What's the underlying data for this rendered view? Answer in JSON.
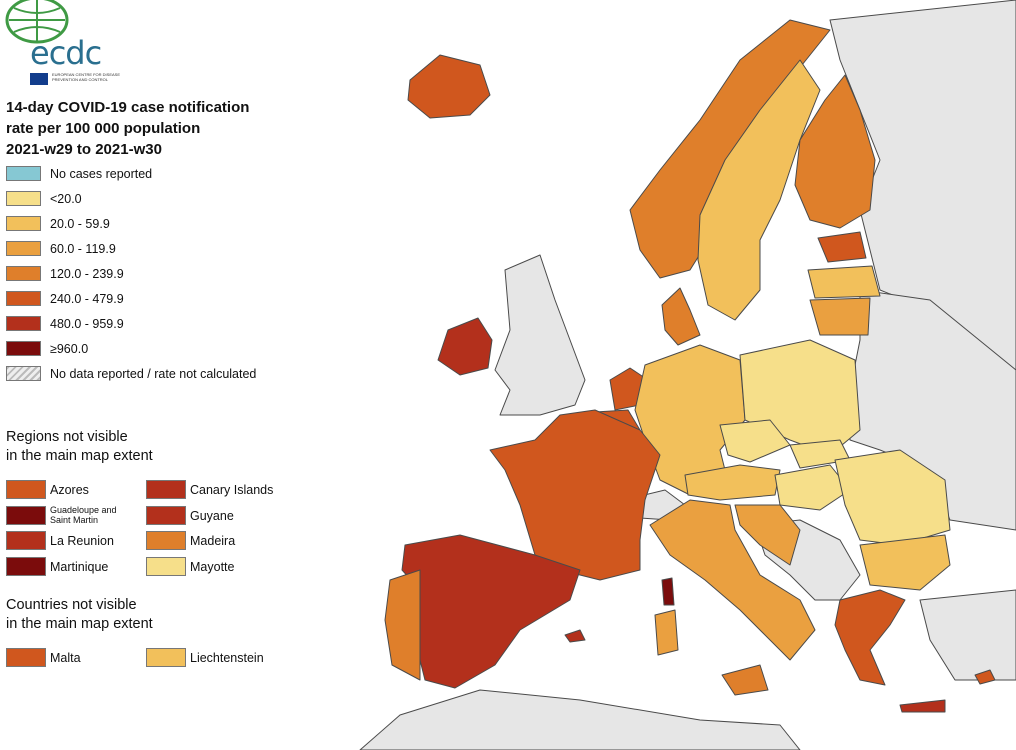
{
  "title_lines": [
    "14-day COVID-19 case notification",
    "rate per 100 000 population",
    "2021-w29 to 2021-w30"
  ],
  "logo": {
    "name": "ecdc",
    "sub": "EUROPEAN CENTRE FOR DISEASE PREVENTION AND CONTROL"
  },
  "legend": [
    {
      "label": "No cases reported",
      "color": "#86c8d3"
    },
    {
      "label": "<20.0",
      "color": "#f6df8a"
    },
    {
      "label": "20.0 - 59.9",
      "color": "#f2c05b"
    },
    {
      "label": "60.0 - 119.9",
      "color": "#eaa040"
    },
    {
      "label": "120.0 - 239.9",
      "color": "#df7f2b"
    },
    {
      "label": "240.0 - 479.9",
      "color": "#d0571e"
    },
    {
      "label": "480.0 - 959.9",
      "color": "#b3301c"
    },
    {
      "label": "≥960.0",
      "color": "#7b0c0c"
    },
    {
      "label": "No data reported / rate not calculated",
      "color": "hatch"
    }
  ],
  "regions_heading": [
    "Regions not visible",
    "in the main map extent"
  ],
  "regions": [
    {
      "label": "Azores",
      "color": "#d0571e"
    },
    {
      "label": "Canary Islands",
      "color": "#b3301c"
    },
    {
      "label": "Guadeloupe and Saint Martin",
      "color": "#7b0c0c"
    },
    {
      "label": "Guyane",
      "color": "#b3301c"
    },
    {
      "label": "La Reunion",
      "color": "#b3301c"
    },
    {
      "label": "Madeira",
      "color": "#df7f2b"
    },
    {
      "label": "Martinique",
      "color": "#7b0c0c"
    },
    {
      "label": "Mayotte",
      "color": "#f6df8a"
    }
  ],
  "countries_heading": [
    "Countries not visible",
    "in the main map extent"
  ],
  "countries": [
    {
      "label": "Malta",
      "color": "#d0571e"
    },
    {
      "label": "Liechtenstein",
      "color": "#f2c05b"
    }
  ],
  "colors": {
    "nodata_land": "#e6e6e6",
    "border": "#555555"
  }
}
